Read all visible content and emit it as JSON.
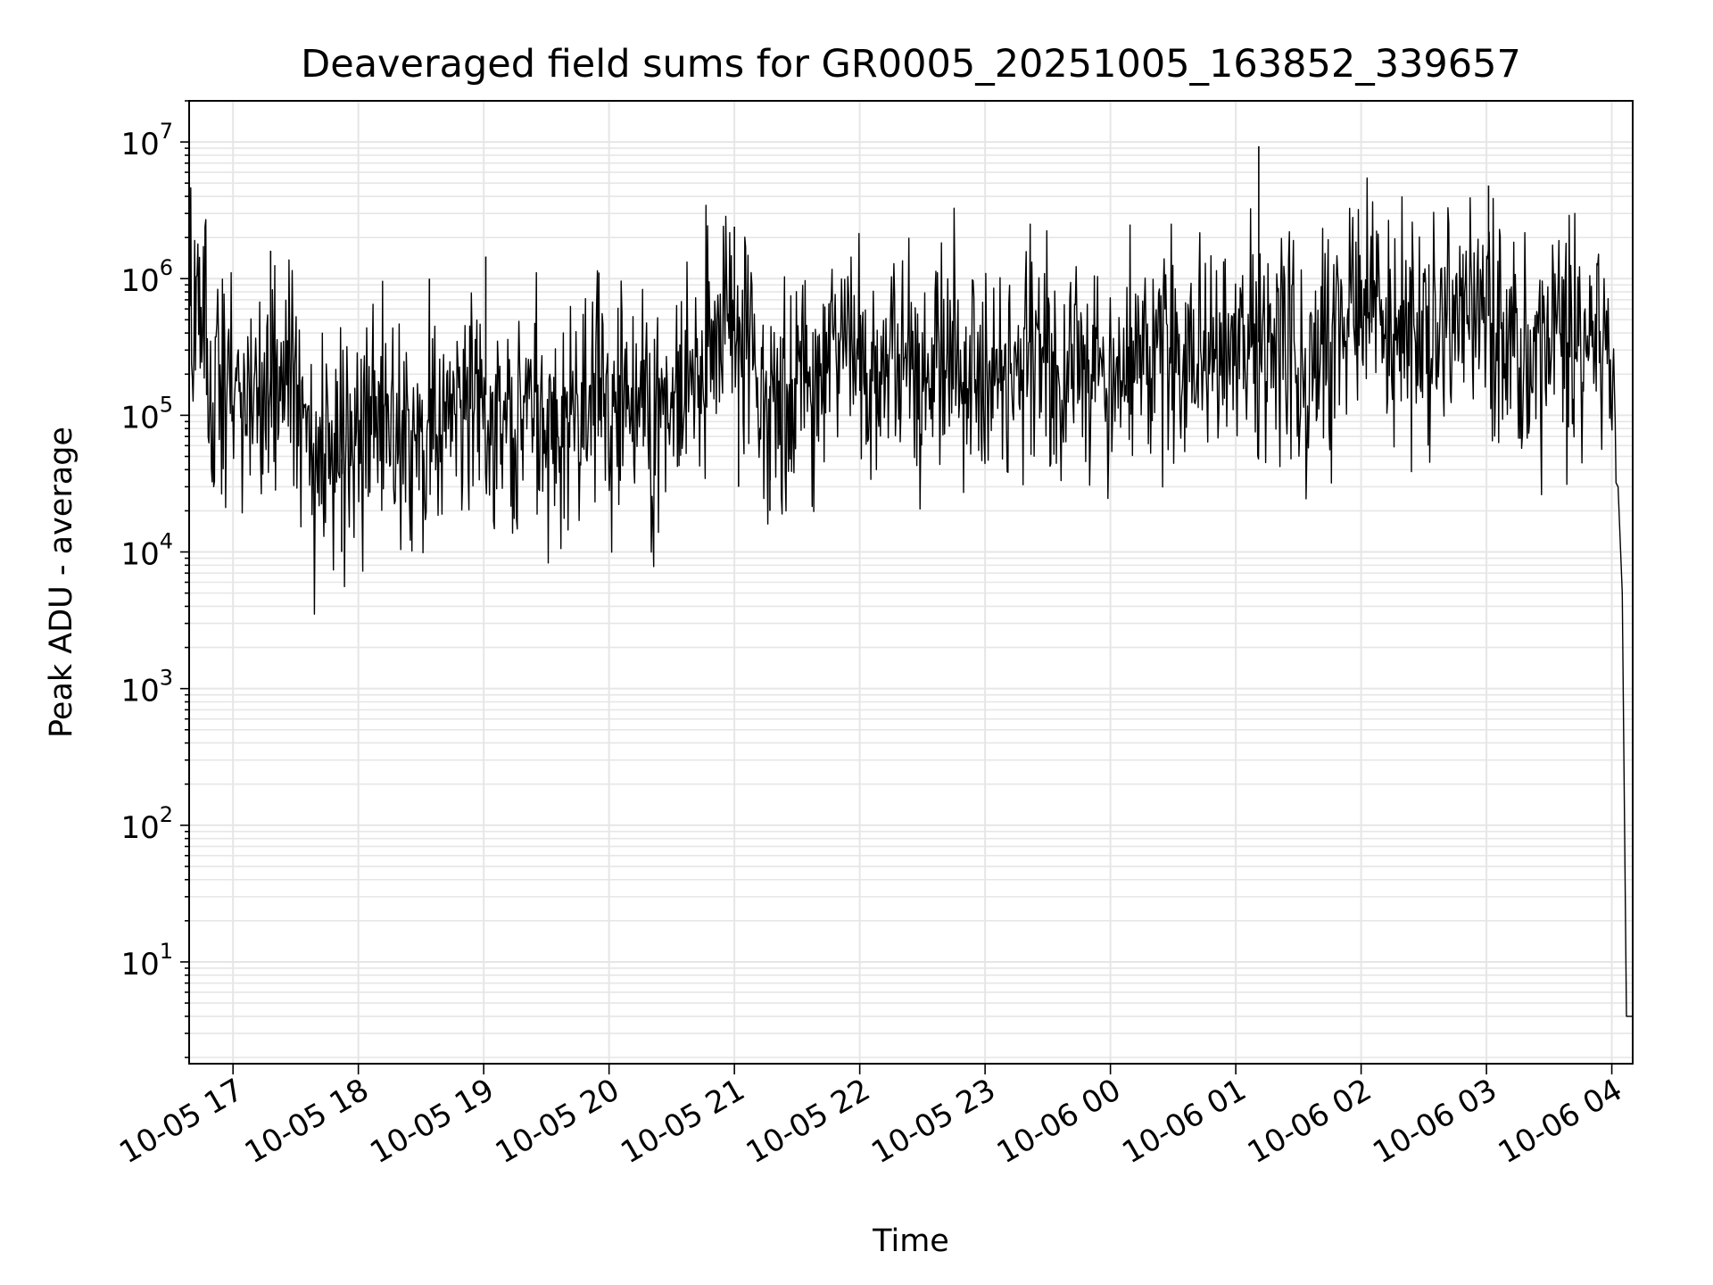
{
  "chart_data": {
    "type": "line",
    "title": "Deaveraged field sums for GR0005_20251005_163852_339657",
    "xlabel": "Time",
    "ylabel": "Peak ADU - average",
    "yscale": "log",
    "ylim": [
      1.8,
      20000000
    ],
    "xlim": [
      "2025-10-05 16:39",
      "2025-10-06 04:10"
    ],
    "x_ticks": [
      {
        "value": "2025-10-05 17:00",
        "label": "10-05 17"
      },
      {
        "value": "2025-10-05 18:00",
        "label": "10-05 18"
      },
      {
        "value": "2025-10-05 19:00",
        "label": "10-05 19"
      },
      {
        "value": "2025-10-05 20:00",
        "label": "10-05 20"
      },
      {
        "value": "2025-10-05 21:00",
        "label": "10-05 21"
      },
      {
        "value": "2025-10-05 22:00",
        "label": "10-05 22"
      },
      {
        "value": "2025-10-05 23:00",
        "label": "10-05 23"
      },
      {
        "value": "2025-10-06 00:00",
        "label": "10-06 00"
      },
      {
        "value": "2025-10-06 01:00",
        "label": "10-06 01"
      },
      {
        "value": "2025-10-06 02:00",
        "label": "10-06 02"
      },
      {
        "value": "2025-10-06 03:00",
        "label": "10-06 03"
      },
      {
        "value": "2025-10-06 04:00",
        "label": "10-06 04"
      }
    ],
    "y_ticks": [
      {
        "value": 10,
        "base": "10",
        "exp": "1"
      },
      {
        "value": 100,
        "base": "10",
        "exp": "2"
      },
      {
        "value": 1000,
        "base": "10",
        "exp": "3"
      },
      {
        "value": 10000,
        "base": "10",
        "exp": "4"
      },
      {
        "value": 100000,
        "base": "10",
        "exp": "5"
      },
      {
        "value": 1000000,
        "base": "10",
        "exp": "6"
      },
      {
        "value": 10000000,
        "base": "10",
        "exp": "7"
      }
    ],
    "grid": true,
    "line_color": "#000000",
    "grid_color": "#e6e6e6",
    "series": [
      {
        "x": [
          "2025-10-05 16:39",
          "2025-10-05 16:45",
          "2025-10-05 16:50",
          "2025-10-05 17:00",
          "2025-10-05 17:10",
          "2025-10-05 17:20",
          "2025-10-05 17:30",
          "2025-10-05 17:35",
          "2025-10-05 17:40",
          "2025-10-05 17:50",
          "2025-10-05 18:00",
          "2025-10-05 18:10",
          "2025-10-05 18:20",
          "2025-10-05 18:30",
          "2025-10-05 18:40",
          "2025-10-05 18:50",
          "2025-10-05 19:00",
          "2025-10-05 19:10",
          "2025-10-05 19:20",
          "2025-10-05 19:30",
          "2025-10-05 19:40",
          "2025-10-05 19:50",
          "2025-10-05 20:00",
          "2025-10-05 20:10",
          "2025-10-05 20:20",
          "2025-10-05 20:30",
          "2025-10-05 20:40",
          "2025-10-05 20:50",
          "2025-10-05 20:55",
          "2025-10-05 21:00",
          "2025-10-05 21:10",
          "2025-10-05 21:20",
          "2025-10-05 21:30",
          "2025-10-05 21:40",
          "2025-10-05 21:50",
          "2025-10-05 22:00",
          "2025-10-05 22:10",
          "2025-10-05 22:20",
          "2025-10-05 22:30",
          "2025-10-05 22:40",
          "2025-10-05 22:50",
          "2025-10-05 23:00",
          "2025-10-05 23:10",
          "2025-10-05 23:20",
          "2025-10-05 23:30",
          "2025-10-05 23:40",
          "2025-10-05 23:50",
          "2025-10-06 00:00",
          "2025-10-06 00:10",
          "2025-10-06 00:20",
          "2025-10-06 00:30",
          "2025-10-06 00:40",
          "2025-10-06 00:50",
          "2025-10-06 01:00",
          "2025-10-06 01:10",
          "2025-10-06 01:20",
          "2025-10-06 01:30",
          "2025-10-06 01:40",
          "2025-10-06 01:50",
          "2025-10-06 02:00",
          "2025-10-06 02:10",
          "2025-10-06 02:20",
          "2025-10-06 02:30",
          "2025-10-06 02:40",
          "2025-10-06 02:50",
          "2025-10-06 03:00",
          "2025-10-06 03:10",
          "2025-10-06 03:20",
          "2025-10-06 03:30",
          "2025-10-06 03:40",
          "2025-10-06 03:50",
          "2025-10-06 04:00",
          "2025-10-06 04:03",
          "2025-10-06 04:05",
          "2025-10-06 04:07",
          "2025-10-06 04:08",
          "2025-10-06 04:10"
        ],
        "y": [
          700000,
          500000,
          150000,
          120000,
          130000,
          150000,
          200000,
          60000,
          40000,
          50000,
          40000,
          120000,
          100000,
          80000,
          100000,
          90000,
          150000,
          80000,
          100000,
          70000,
          80000,
          150000,
          100000,
          120000,
          100000,
          150000,
          200000,
          500000,
          800000,
          500000,
          200000,
          150000,
          180000,
          150000,
          500000,
          250000,
          200000,
          250000,
          200000,
          180000,
          250000,
          200000,
          220000,
          250000,
          200000,
          220000,
          250000,
          200000,
          250000,
          300000,
          300000,
          250000,
          300000,
          250000,
          350000,
          280000,
          250000,
          300000,
          400000,
          500000,
          450000,
          400000,
          350000,
          400000,
          500000,
          550000,
          400000,
          200000,
          300000,
          350000,
          400000,
          300000,
          30000,
          5000,
          4,
          4,
          4
        ]
      }
    ],
    "spikes": [
      {
        "x": "2025-10-05 17:18",
        "y": 1600000
      },
      {
        "x": "2025-10-05 18:34",
        "y": 1000000
      },
      {
        "x": "2025-10-05 19:01",
        "y": 1450000
      },
      {
        "x": "2025-10-05 21:00",
        "y": 2400000
      },
      {
        "x": "2025-10-05 21:02",
        "y": 30000
      },
      {
        "x": "2025-10-05 21:17",
        "y": 20000
      },
      {
        "x": "2025-10-06 01:11",
        "y": 9300000
      },
      {
        "x": "2025-10-06 03:01",
        "y": 4800000
      },
      {
        "x": "2025-10-05 17:52",
        "y": 10000
      },
      {
        "x": "2025-10-06 02:05",
        "y": 1900000
      }
    ]
  }
}
